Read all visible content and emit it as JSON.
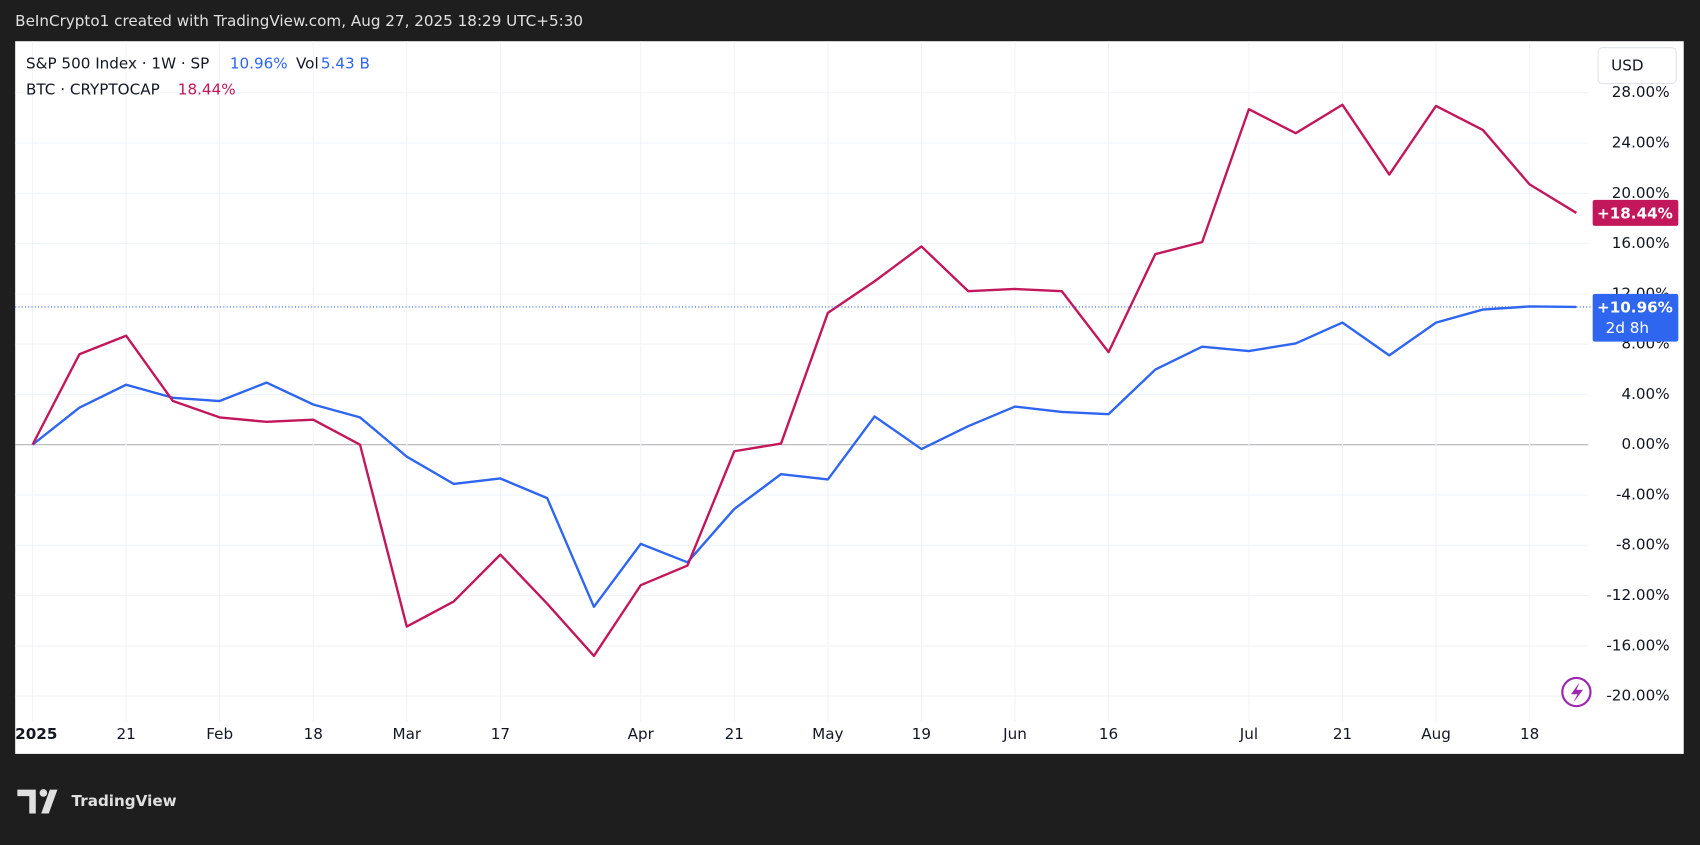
{
  "header": {
    "credit": "BeInCrypto1 created with TradingView.com, Aug 27, 2025 18:29 UTC+5:30"
  },
  "chart_data": {
    "type": "line",
    "currency": "USD",
    "categories": [
      "2025",
      null,
      "21",
      null,
      "Feb",
      null,
      "18",
      null,
      "Mar",
      null,
      "17",
      null,
      null,
      "Apr",
      null,
      "21",
      null,
      "May",
      null,
      "19",
      null,
      "Jun",
      null,
      "16",
      null,
      null,
      "Jul",
      null,
      "21",
      null,
      "Aug",
      null,
      "18",
      null
    ],
    "series": [
      {
        "name": "S&P 500 Index · 1W · SP",
        "color": "#2f66f0",
        "legend_value": "10.96%",
        "volume_label": "Vol",
        "volume": "5.43 B",
        "last_label": "+10.96%",
        "countdown": "2d 8h",
        "values": [
          0,
          2.95,
          4.77,
          3.73,
          3.47,
          4.94,
          3.2,
          2.17,
          -0.95,
          -3.12,
          -2.69,
          -4.25,
          -12.9,
          -7.89,
          -9.36,
          -5.11,
          -2.34,
          -2.77,
          2.25,
          -0.35,
          1.47,
          3.03,
          2.6,
          2.43,
          5.98,
          7.8,
          7.45,
          8.06,
          9.71,
          7.11,
          9.71,
          10.75,
          11.0,
          10.96
        ]
      },
      {
        "name": "BTC · CRYPTOCAP",
        "color": "#c2185b",
        "legend_value": "18.44%",
        "last_label": "+18.44%",
        "values": [
          0,
          7.19,
          8.67,
          3.47,
          2.17,
          1.82,
          1.99,
          0,
          -14.47,
          -12.48,
          -8.75,
          -12.65,
          -16.81,
          -11.18,
          -9.62,
          -0.52,
          0.09,
          10.49,
          13.0,
          15.77,
          12.22,
          12.39,
          12.22,
          7.37,
          15.16,
          16.12,
          26.69,
          24.78,
          27.04,
          21.49,
          26.95,
          25.04,
          20.71,
          18.44
        ]
      }
    ],
    "ylim": [
      -24.6,
      32.1
    ],
    "yticks": [
      {
        "value": 28,
        "label": "28.00%"
      },
      {
        "value": 24,
        "label": "24.00%"
      },
      {
        "value": 20,
        "label": "20.00%"
      },
      {
        "value": 16,
        "label": "16.00%"
      },
      {
        "value": 12,
        "label": "12.00%"
      },
      {
        "value": 8,
        "label": "8.00%"
      },
      {
        "value": 4,
        "label": "4.00%"
      },
      {
        "value": 0,
        "label": "0.00%"
      },
      {
        "value": -4,
        "label": "-4.00%"
      },
      {
        "value": -8,
        "label": "-8.00%"
      },
      {
        "value": -12,
        "label": "-12.00%"
      },
      {
        "value": -16,
        "label": "-16.00%"
      },
      {
        "value": -20,
        "label": "-20.00%"
      }
    ],
    "grid": true
  },
  "footer": {
    "brand": "TradingView"
  }
}
